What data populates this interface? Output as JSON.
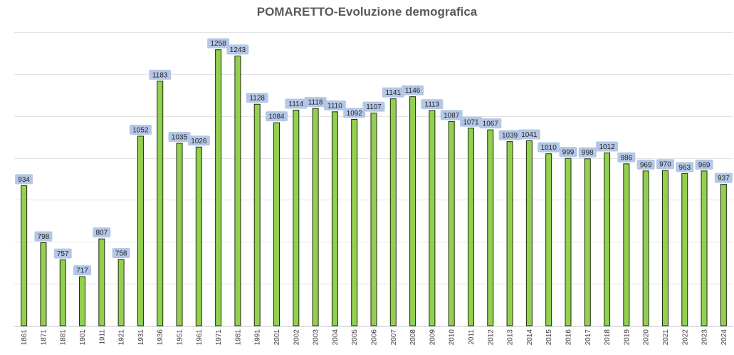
{
  "chart_data": {
    "type": "bar",
    "title": "POMARETTO-Evoluzione demografica",
    "xlabel": "",
    "ylabel": "",
    "categories": [
      "1861",
      "1871",
      "1881",
      "1901",
      "1911",
      "1921",
      "1931",
      "1936",
      "1951",
      "1961",
      "1971",
      "1981",
      "1991",
      "2001",
      "2002",
      "2003",
      "2004",
      "2005",
      "2006",
      "2007",
      "2008",
      "2009",
      "2010",
      "2011",
      "2012",
      "2013",
      "2014",
      "2015",
      "2016",
      "2017",
      "2018",
      "2019",
      "2020",
      "2021",
      "2022",
      "2023",
      "2024"
    ],
    "values": [
      934,
      798,
      757,
      717,
      807,
      758,
      1052,
      1183,
      1035,
      1026,
      1258,
      1243,
      1128,
      1084,
      1114,
      1118,
      1110,
      1092,
      1107,
      1141,
      1146,
      1113,
      1087,
      1071,
      1067,
      1039,
      1041,
      1010,
      999,
      998,
      1012,
      986,
      969,
      970,
      963,
      969,
      937
    ],
    "ylim": [
      600,
      1300
    ],
    "grid": true,
    "legend": "none",
    "colors": {
      "bar": "#92d050",
      "bar_border": "#1f2a0d",
      "label_bg": "#b4c7e7",
      "grid": "#e3e3e3",
      "title": "#595959"
    }
  }
}
